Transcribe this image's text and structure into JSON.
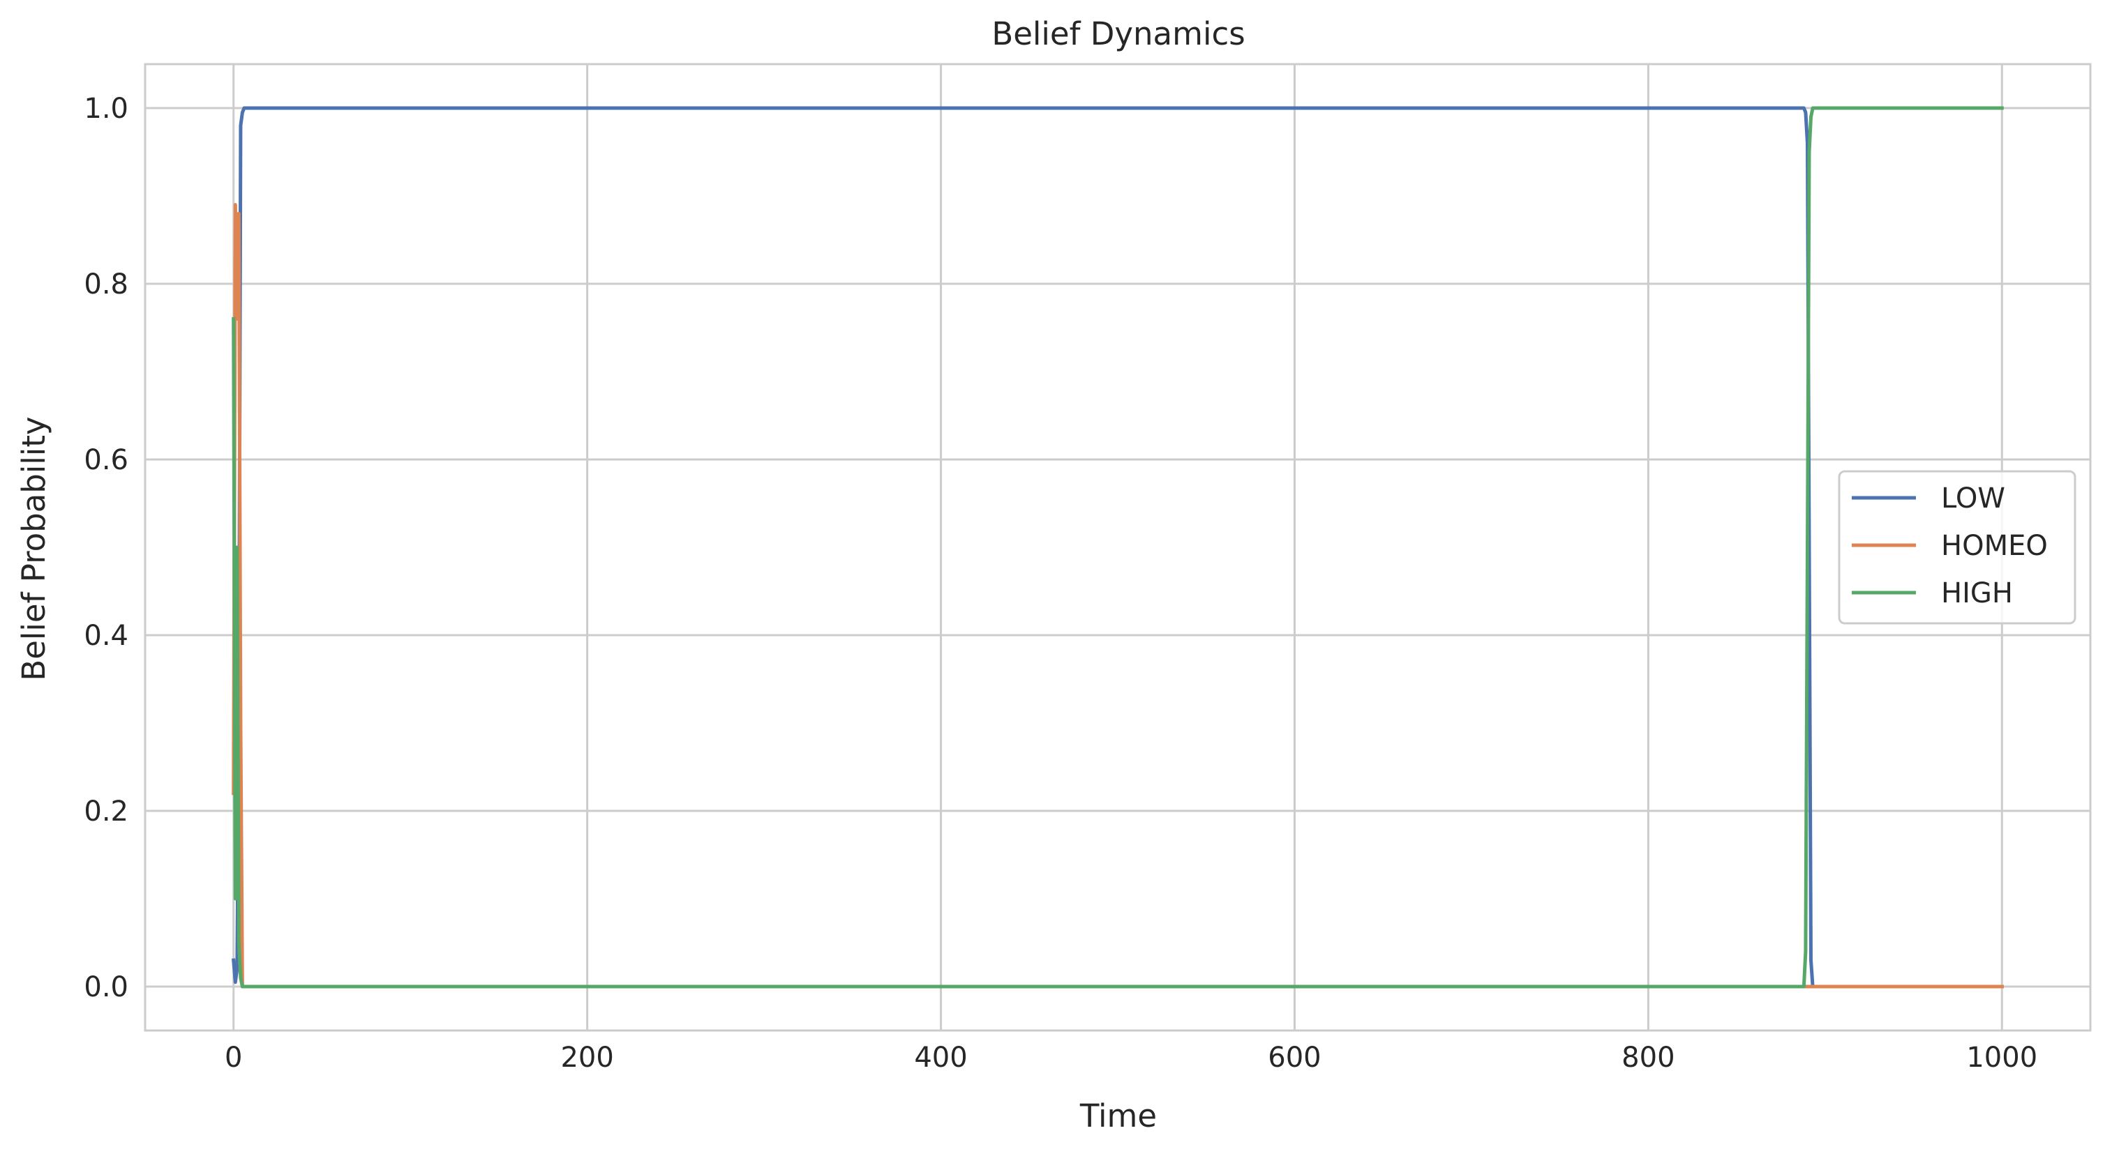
{
  "chart_data": {
    "type": "line",
    "title": "Belief Dynamics",
    "xlabel": "Time",
    "ylabel": "Belief Probability",
    "xlim": [
      -50,
      1050
    ],
    "ylim": [
      -0.05,
      1.05
    ],
    "xticks": [
      0,
      200,
      400,
      600,
      800,
      1000
    ],
    "xtick_labels": [
      "0",
      "200",
      "400",
      "600",
      "800",
      "1000"
    ],
    "yticks": [
      0.0,
      0.2,
      0.4,
      0.6,
      0.8,
      1.0
    ],
    "ytick_labels": [
      "0.0",
      "0.2",
      "0.4",
      "0.6",
      "0.8",
      "1.0"
    ],
    "grid": true,
    "legend_position": "center-right",
    "series": [
      {
        "name": "LOW",
        "color": "#4c72b0",
        "x": [
          0,
          1,
          2,
          3,
          4,
          5,
          6,
          888,
          889,
          890,
          891,
          892,
          893,
          1000
        ],
        "y": [
          0.03,
          0.005,
          0.02,
          0.3,
          0.98,
          0.995,
          1.0,
          1.0,
          0.995,
          0.96,
          0.5,
          0.03,
          0.0,
          0.0
        ]
      },
      {
        "name": "HOMEO",
        "color": "#dd8452",
        "x": [
          0,
          1,
          2,
          3,
          4,
          5,
          6,
          1000
        ],
        "y": [
          0.22,
          0.89,
          0.76,
          0.88,
          0.3,
          0.0,
          0.0,
          0.0
        ]
      },
      {
        "name": "HIGH",
        "color": "#55a868",
        "x": [
          0,
          1,
          2,
          3,
          4,
          5,
          888,
          889,
          890,
          891,
          892,
          893,
          894,
          1000
        ],
        "y": [
          0.76,
          0.1,
          0.5,
          0.05,
          0.01,
          0.0,
          0.0,
          0.04,
          0.5,
          0.95,
          0.99,
          1.0,
          1.0,
          1.0
        ]
      }
    ]
  }
}
